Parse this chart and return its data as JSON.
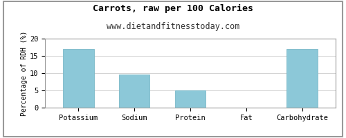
{
  "title": "Carrots, raw per 100 Calories",
  "subtitle": "www.dietandfitnesstoday.com",
  "categories": [
    "Potassium",
    "Sodium",
    "Protein",
    "Fat",
    "Carbohydrate"
  ],
  "values": [
    17,
    9.7,
    5.0,
    0,
    17
  ],
  "bar_color": "#8cc8d8",
  "bar_edge_color": "#7ab8c8",
  "ylabel": "Percentage of RDH (%)",
  "ylim": [
    0,
    20
  ],
  "yticks": [
    0,
    5,
    10,
    15,
    20
  ],
  "title_fontsize": 9.5,
  "subtitle_fontsize": 8.5,
  "ylabel_fontsize": 7,
  "tick_fontsize": 7.5,
  "background_color": "#ffffff",
  "grid_color": "#cccccc",
  "border_color": "#999999"
}
